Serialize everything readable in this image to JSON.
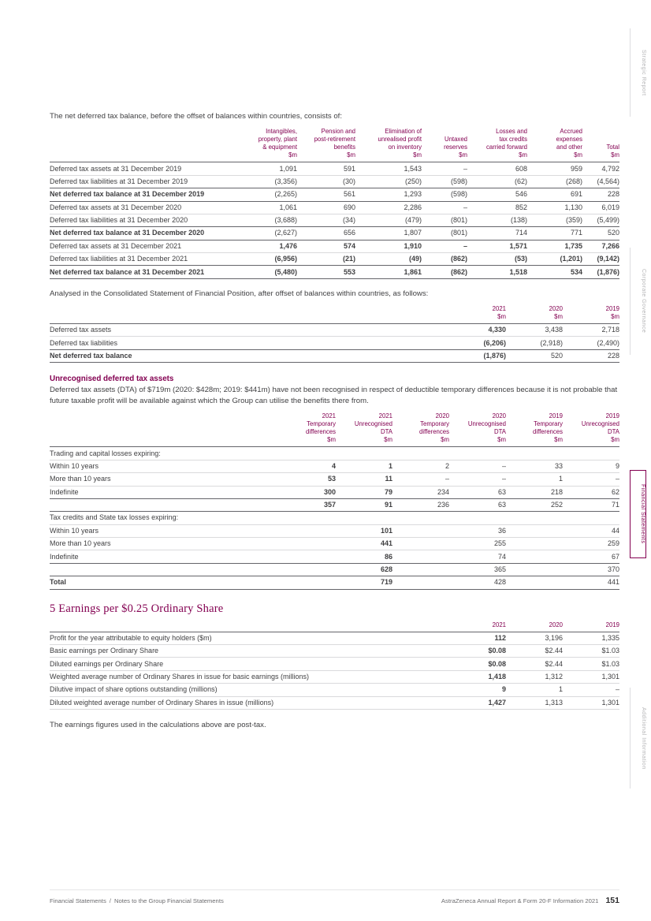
{
  "colors": {
    "accent": "#830051",
    "text": "#3f3f41",
    "muted": "#6d6d70"
  },
  "texts": {
    "intro1": "The net deferred tax balance, before the offset of balances within countries, consists of:",
    "intro2": "Analysed in the Consolidated Statement of Financial Position, after offset of balances within countries, as follows:",
    "unrecognised_heading": "Unrecognised deferred tax assets",
    "unrecognised_para": "Deferred tax assets (DTA) of $719m (2020: $428m; 2019: $441m) have not been recognised in respect of deductible temporary differences because it is not probable that future taxable profit will be available against which the Group can utilise the benefits there from.",
    "eps_heading": "5 Earnings per $0.25 Ordinary Share",
    "post_tax_note": "The earnings figures used in the calculations above are post-tax."
  },
  "sidebar": {
    "tabs": [
      {
        "label": "Strategic Report",
        "active": false
      },
      {
        "label": "Corporate Governance",
        "active": false
      },
      {
        "label": "Financial Statements",
        "active": true
      },
      {
        "label": "Additional Information",
        "active": false
      }
    ]
  },
  "footer": {
    "left_section": "Financial Statements",
    "left_separator": "/",
    "left_page_title": "Notes to the Group Financial Statements",
    "right": "AstraZeneca Annual Report & Form 20-F Information 2021",
    "page_number": "151"
  },
  "tables": {
    "deferred_by_category": {
      "headers": [
        {
          "text": "Intangibles,\nproperty, plant\n& equipment\n$m"
        },
        {
          "text": "Pension and\npost-retirement\nbenefits\n$m"
        },
        {
          "text": "Elimination of\nunrealised profit\non inventory\n$m"
        },
        {
          "text": "Untaxed\nreserves\n$m"
        },
        {
          "text": "Losses and\ntax credits\ncarried forward\n$m"
        },
        {
          "text": "Accrued\nexpenses\nand other\n$m"
        },
        {
          "text": "Total\n$m"
        }
      ],
      "rows": [
        {
          "label": "Deferred tax assets at 31 December 2019",
          "cells": [
            "1,091",
            "591",
            "1,543",
            "–",
            "608",
            "959",
            "4,792"
          ]
        },
        {
          "label": "Deferred tax liabilities at 31 December 2019",
          "cells": [
            "(3,356)",
            "(30)",
            "(250)",
            "(598)",
            "(62)",
            "(268)",
            "(4,564)"
          ]
        },
        {
          "label": "Net deferred tax balance at 31 December 2019",
          "cells": [
            "(2,265)",
            "561",
            "1,293",
            "(598)",
            "546",
            "691",
            "228"
          ],
          "bold_label": true,
          "rule": true
        },
        {
          "label": "Deferred tax assets at 31 December 2020",
          "cells": [
            "1,061",
            "690",
            "2,286",
            "–",
            "852",
            "1,130",
            "6,019"
          ]
        },
        {
          "label": "Deferred tax liabilities at 31 December 2020",
          "cells": [
            "(3,688)",
            "(34)",
            "(479)",
            "(801)",
            "(138)",
            "(359)",
            "(5,499)"
          ]
        },
        {
          "label": "Net deferred tax balance at 31 December 2020",
          "cells": [
            "(2,627)",
            "656",
            "1,807",
            "(801)",
            "714",
            "771",
            "520"
          ],
          "bold_label": true,
          "rule": true
        },
        {
          "label": "Deferred tax assets at 31 December 2021",
          "cells": [
            "1,476",
            "574",
            "1,910",
            "–",
            "1,571",
            "1,735",
            "7,266"
          ],
          "bold_cells": true
        },
        {
          "label": "Deferred tax liabilities at 31 December 2021",
          "cells": [
            "(6,956)",
            "(21)",
            "(49)",
            "(862)",
            "(53)",
            "(1,201)",
            "(9,142)"
          ],
          "bold_cells": true
        },
        {
          "label": "Net deferred tax balance at 31 December 2021",
          "cells": [
            "(5,480)",
            "553",
            "1,861",
            "(862)",
            "1,518",
            "534",
            "(1,876)"
          ],
          "bold_label": true,
          "bold_cells": true,
          "rule": true
        }
      ]
    },
    "deferred_after_offset": {
      "bold_cols": [
        0
      ],
      "headers": [
        {
          "text": "2021\n$m",
          "bold": true
        },
        {
          "text": "2020\n$m"
        },
        {
          "text": "2019\n$m"
        }
      ],
      "rows": [
        {
          "label": "Deferred tax assets",
          "cells": [
            "4,330",
            "3,438",
            "2,718"
          ]
        },
        {
          "label": "Deferred tax liabilities",
          "cells": [
            "(6,206)",
            "(2,918)",
            "(2,490)"
          ]
        },
        {
          "label": "Net deferred tax balance",
          "cells": [
            "(1,876)",
            "520",
            "228"
          ],
          "bold_label": true,
          "rule": true
        }
      ]
    },
    "unrecognised_dta": {
      "bold_cols": [
        0,
        1
      ],
      "headers": [
        {
          "text": "2021\nTemporary\ndifferences\n$m",
          "bold": true
        },
        {
          "text": "2021\nUnrecognised\nDTA\n$m",
          "bold": true
        },
        {
          "text": "2020\nTemporary\ndifferences\n$m"
        },
        {
          "text": "2020\nUnrecognised\nDTA\n$m"
        },
        {
          "text": "2019\nTemporary\ndifferences\n$m"
        },
        {
          "text": "2019\nUnrecognised\nDTA\n$m"
        }
      ],
      "rows": [
        {
          "label": "Trading and capital losses expiring:",
          "section": true
        },
        {
          "label": "Within 10 years",
          "cells": [
            "4",
            "1",
            "2",
            "–",
            "33",
            "9"
          ]
        },
        {
          "label": "More than 10 years",
          "cells": [
            "53",
            "11",
            "–",
            "–",
            "1",
            "–"
          ]
        },
        {
          "label": "Indefinite",
          "cells": [
            "300",
            "79",
            "234",
            "63",
            "218",
            "62"
          ]
        },
        {
          "label": "",
          "cells": [
            "357",
            "91",
            "236",
            "63",
            "252",
            "71"
          ],
          "rule": true
        },
        {
          "label": "Tax credits and State tax losses expiring:",
          "section": true
        },
        {
          "label": "Within 10 years",
          "cells": [
            "",
            "101",
            "",
            "36",
            "",
            "44"
          ]
        },
        {
          "label": "More than 10 years",
          "cells": [
            "",
            "441",
            "",
            "255",
            "",
            "259"
          ]
        },
        {
          "label": "Indefinite",
          "cells": [
            "",
            "86",
            "",
            "74",
            "",
            "67"
          ]
        },
        {
          "label": "",
          "cells": [
            "",
            "628",
            "",
            "365",
            "",
            "370"
          ],
          "rule": true
        },
        {
          "label": "Total",
          "cells": [
            "",
            "719",
            "",
            "428",
            "",
            "441"
          ],
          "bold_label": true,
          "rule": true
        }
      ]
    },
    "eps": {
      "bold_cols": [
        0
      ],
      "headers": [
        {
          "text": "2021",
          "bold": true
        },
        {
          "text": "2020"
        },
        {
          "text": "2019"
        }
      ],
      "rows": [
        {
          "label": "Profit for the year attributable to equity holders ($m)",
          "cells": [
            "112",
            "3,196",
            "1,335"
          ]
        },
        {
          "label": "Basic earnings per Ordinary Share",
          "cells": [
            "$0.08",
            "$2.44",
            "$1.03"
          ]
        },
        {
          "label": "Diluted earnings per Ordinary Share",
          "cells": [
            "$0.08",
            "$2.44",
            "$1.03"
          ]
        },
        {
          "label": "Weighted average number of Ordinary Shares in issue for basic earnings (millions)",
          "cells": [
            "1,418",
            "1,312",
            "1,301"
          ]
        },
        {
          "label": "Dilutive impact of share options outstanding (millions)",
          "cells": [
            "9",
            "1",
            "–"
          ]
        },
        {
          "label": "Diluted weighted average number of Ordinary Shares in issue (millions)",
          "cells": [
            "1,427",
            "1,313",
            "1,301"
          ]
        }
      ]
    }
  }
}
